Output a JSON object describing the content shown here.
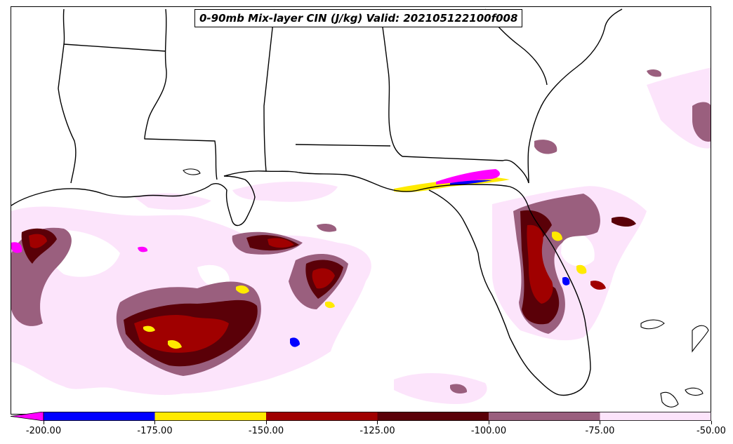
{
  "title": "0-90mb Mix-layer CIN (J/kg) Valid: 202105122100f008",
  "colorbar": {
    "under_color": "#ff00ff",
    "bins": [
      {
        "from": -200,
        "to": -175,
        "color": "#0000ff"
      },
      {
        "from": -175,
        "to": -150,
        "color": "#ffea00"
      },
      {
        "from": -150,
        "to": -125,
        "color": "#a00000"
      },
      {
        "from": -125,
        "to": -100,
        "color": "#5a0008"
      },
      {
        "from": -100,
        "to": -75,
        "color": "#9a5f7e"
      },
      {
        "from": -75,
        "to": -50,
        "color": "#fce4fb"
      }
    ],
    "tick_labels": [
      "-200.00",
      "-175.00",
      "-150.00",
      "-125.00",
      "-100.00",
      "-75.00",
      "-50.00"
    ]
  },
  "map": {
    "region": "Gulf of Mexico and southeastern United States",
    "boundaries_color": "#000000",
    "field_colors": {
      "light": "#fce4fb",
      "mauve": "#9a5f7e",
      "dark": "#5a0008",
      "red": "#a00000",
      "yellow": "#ffea00",
      "blue": "#0000ff",
      "magenta": "#ff00ff"
    }
  }
}
